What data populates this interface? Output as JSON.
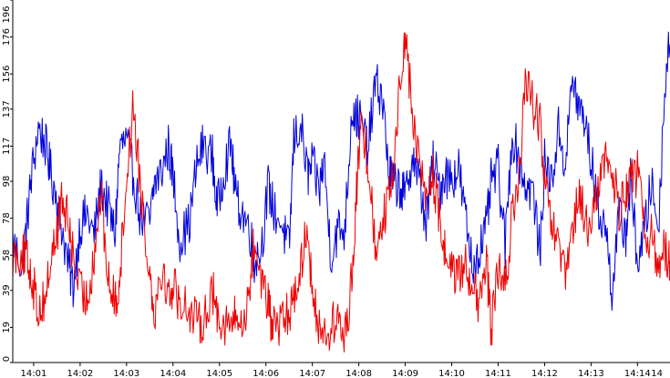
{
  "chart_data": {
    "type": "line",
    "title": "",
    "xlabel": "",
    "ylabel": "",
    "ylim": [
      0,
      196
    ],
    "xlim_minutes": [
      0.55,
      14.7
    ],
    "grid": false,
    "y_ticks": [
      "0",
      "19",
      "39",
      "58",
      "78",
      "98",
      "117",
      "137",
      "156",
      "176",
      "196"
    ],
    "x_ticks": [
      "14:01",
      "14:02",
      "14:03",
      "14:04",
      "14:05",
      "14:06",
      "14:07",
      "14:08",
      "14:09",
      "14:10",
      "14:11",
      "14:12",
      "14:13",
      "14:14",
      "14"
    ],
    "x_tick_minutes": [
      1,
      2,
      3,
      4,
      5,
      6,
      7,
      8,
      9,
      10,
      11,
      12,
      13,
      14,
      14.92
    ],
    "series": [
      {
        "color": "#0000dd",
        "x": [
          0.55,
          0.75,
          0.85,
          0.95,
          1.1,
          1.25,
          1.35,
          1.5,
          1.6,
          1.75,
          1.85,
          2.0,
          2.15,
          2.3,
          2.45,
          2.6,
          2.75,
          2.85,
          3.0,
          3.15,
          3.3,
          3.5,
          3.6,
          3.75,
          3.9,
          4.0,
          4.15,
          4.35,
          4.5,
          4.65,
          4.85,
          4.95,
          5.1,
          5.25,
          5.35,
          5.5,
          5.65,
          5.75,
          5.9,
          6.05,
          6.15,
          6.35,
          6.5,
          6.6,
          6.75,
          6.9,
          7.0,
          7.15,
          7.25,
          7.4,
          7.55,
          7.7,
          7.85,
          7.95,
          8.05,
          8.2,
          8.35,
          8.5,
          8.65,
          8.75,
          8.9,
          9.0,
          9.15,
          9.3,
          9.45,
          9.6,
          9.75,
          9.85,
          10.0,
          10.15,
          10.3,
          10.45,
          10.6,
          10.75,
          10.85,
          11.0,
          11.15,
          11.3,
          11.45,
          11.6,
          11.75,
          11.9,
          12.0,
          12.15,
          12.3,
          12.45,
          12.6,
          12.75,
          12.85,
          13.0,
          13.15,
          13.3,
          13.45,
          13.6,
          13.75,
          13.85,
          14.0,
          14.15,
          14.3,
          14.45,
          14.6,
          14.7
        ],
        "y": [
          66,
          52,
          75,
          100,
          127,
          118,
          105,
          88,
          74,
          52,
          41,
          74,
          80,
          68,
          96,
          84,
          69,
          116,
          120,
          101,
          78,
          75,
          97,
          103,
          117,
          101,
          66,
          75,
          105,
          118,
          111,
          82,
          105,
          118,
          89,
          81,
          72,
          55,
          62,
          95,
          84,
          74,
          60,
          121,
          128,
          101,
          107,
          93,
          110,
          58,
          72,
          72,
          137,
          133,
          130,
          115,
          150,
          145,
          102,
          97,
          95,
          88,
          113,
          98,
          75,
          108,
          94,
          102,
          100,
          105,
          78,
          51,
          62,
          73,
          98,
          105,
          62,
          124,
          110,
          95,
          93,
          58,
          108,
          98,
          126,
          107,
          154,
          136,
          133,
          110,
          82,
          75,
          40,
          78,
          70,
          98,
          55,
          70,
          98,
          72,
          155,
          172
        ]
      },
      {
        "color": "#ee0000",
        "x": [
          0.55,
          0.75,
          0.85,
          0.95,
          1.1,
          1.25,
          1.35,
          1.5,
          1.6,
          1.75,
          1.85,
          2.0,
          2.15,
          2.3,
          2.45,
          2.6,
          2.75,
          2.85,
          3.0,
          3.15,
          3.3,
          3.5,
          3.6,
          3.75,
          3.9,
          4.0,
          4.15,
          4.35,
          4.5,
          4.65,
          4.85,
          4.95,
          5.1,
          5.25,
          5.35,
          5.5,
          5.65,
          5.75,
          5.9,
          6.05,
          6.15,
          6.35,
          6.5,
          6.6,
          6.75,
          6.9,
          7.0,
          7.15,
          7.25,
          7.4,
          7.55,
          7.7,
          7.85,
          7.95,
          8.05,
          8.2,
          8.35,
          8.5,
          8.65,
          8.75,
          8.9,
          9.0,
          9.15,
          9.3,
          9.45,
          9.6,
          9.75,
          9.85,
          10.0,
          10.15,
          10.3,
          10.45,
          10.6,
          10.75,
          10.85,
          11.0,
          11.15,
          11.3,
          11.45,
          11.6,
          11.75,
          11.9,
          12.0,
          12.15,
          12.3,
          12.45,
          12.6,
          12.75,
          12.85,
          13.0,
          13.15,
          13.3,
          13.45,
          13.6,
          13.75,
          13.85,
          14.0,
          14.15,
          14.3,
          14.45,
          14.6,
          14.7
        ],
        "y": [
          58,
          60,
          55,
          48,
          28,
          35,
          52,
          70,
          88,
          75,
          58,
          38,
          34,
          58,
          92,
          45,
          32,
          45,
          100,
          140,
          95,
          48,
          28,
          52,
          36,
          42,
          33,
          30,
          21,
          24,
          38,
          28,
          22,
          20,
          25,
          18,
          42,
          65,
          47,
          30,
          18,
          22,
          26,
          38,
          50,
          78,
          32,
          22,
          15,
          18,
          24,
          12,
          45,
          92,
          128,
          110,
          63,
          78,
          88,
          105,
          156,
          178,
          135,
          108,
          90,
          101,
          75,
          60,
          52,
          45,
          55,
          42,
          28,
          55,
          18,
          50,
          38,
          80,
          100,
          154,
          140,
          128,
          96,
          75,
          60,
          45,
          70,
          92,
          78,
          68,
          98,
          110,
          105,
          82,
          94,
          100,
          102,
          70,
          68,
          52,
          62,
          55
        ]
      }
    ]
  }
}
